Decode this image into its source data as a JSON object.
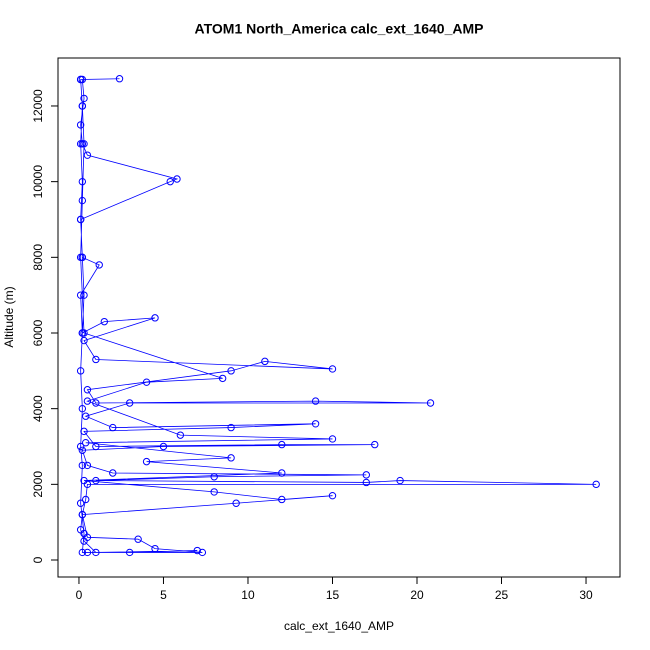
{
  "chart_data": {
    "type": "line",
    "markers": true,
    "title": "ATOM1 North_America calc_ext_1640_AMP",
    "x_label": "calc_ext_1640_AMP",
    "y_label": "Altitude (m)",
    "color": "#0000ff",
    "xlim": [
      -1.24,
      32.01
    ],
    "ylim": [
      -449,
      13268
    ],
    "xticks": [
      0,
      5,
      10,
      15,
      20,
      25,
      30
    ],
    "yticks": [
      0,
      2000,
      4000,
      6000,
      8000,
      10000,
      12000
    ],
    "series": [
      {
        "x": [
          0.5,
          3,
          7,
          1,
          0.3,
          0.1,
          0.2,
          0.4,
          0.5,
          30.6,
          19,
          17,
          1,
          8,
          17,
          2,
          0.5,
          0.2,
          5,
          17.5,
          12,
          1,
          0.3,
          9,
          14,
          2,
          0.4,
          3,
          20.8,
          14,
          1,
          0.5,
          9,
          11,
          15,
          1,
          0.3,
          4.5,
          1.5,
          0.2,
          0.1,
          1.2,
          0.2,
          0.1,
          5.4,
          5.8,
          0.5,
          0.2,
          0.1,
          0.3,
          0.2,
          2.4,
          0.1,
          0.2,
          0.3,
          0.2,
          0.1,
          0.3,
          8.5,
          4,
          0.5,
          6,
          15,
          0.4,
          9,
          4,
          12,
          0.3,
          8,
          12,
          15,
          9.3,
          0.2,
          0.5,
          3.5,
          4.5,
          7.3,
          0.2,
          0.3,
          0.1,
          0.2,
          0.1,
          0.2,
          0.1,
          0.2,
          0.3,
          0.2,
          0.1,
          0.2,
          0.1,
          0.2,
          0.1
        ],
        "y": [
          200,
          200,
          250,
          200,
          500,
          800,
          1200,
          1600,
          2000,
          2000,
          2100,
          2050,
          2100,
          2200,
          2250,
          2300,
          2500,
          2900,
          3000,
          3050,
          3050,
          3000,
          3400,
          3500,
          3600,
          3500,
          3800,
          4150,
          4150,
          4200,
          4150,
          4500,
          5000,
          5250,
          5050,
          5300,
          5800,
          6400,
          6300,
          6000,
          7000,
          7800,
          8000,
          9000,
          10000,
          10070,
          10700,
          11000,
          11500,
          12200,
          12700,
          12720,
          12700,
          12000,
          11000,
          9500,
          8000,
          6000,
          4800,
          4700,
          4200,
          3300,
          3200,
          3100,
          2700,
          2600,
          2300,
          2100,
          1800,
          1600,
          1700,
          1500,
          1200,
          600,
          550,
          300,
          200,
          200,
          700,
          1500,
          2500,
          3000,
          4000,
          5000,
          6000,
          7000,
          8000,
          9000,
          10000,
          11000,
          12000,
          12700
        ]
      }
    ]
  }
}
